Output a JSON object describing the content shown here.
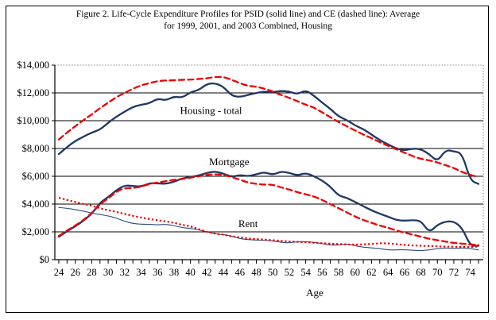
{
  "figure": {
    "title_line1": "Figure 2. Life-Cycle Expenditure Profiles for PSID (solid line) and CE (dashed line): Average",
    "title_line2": "for 1999, 2001, and 2003 Combined, Housing"
  },
  "colors": {
    "psid_solid": "#1F3864",
    "rent_psid_thin": "#2B4B7E",
    "ce_red": "#EE0000",
    "gridline": "#000000",
    "dotted_border": "#888888"
  },
  "chart_data": {
    "type": "line",
    "title": "Figure 2. Life-Cycle Expenditure Profiles for PSID (solid line) and CE (dashed line): Average for 1999, 2001, and 2003 Combined, Housing",
    "xlabel": "Age",
    "ylabel": "",
    "xlim": [
      24,
      75
    ],
    "ylim": [
      0,
      14000
    ],
    "grid": true,
    "legend": "none (labels drawn inside plot)",
    "x_tick_labels": [
      "24",
      "26",
      "28",
      "30",
      "32",
      "34",
      "36",
      "38",
      "40",
      "42",
      "44",
      "46",
      "48",
      "50",
      "52",
      "54",
      "56",
      "58",
      "60",
      "62",
      "64",
      "66",
      "68",
      "70",
      "72",
      "74"
    ],
    "y_ticks": [
      {
        "value": 0,
        "label": "$0"
      },
      {
        "value": 2000,
        "label": "$2,000"
      },
      {
        "value": 4000,
        "label": "$4,000"
      },
      {
        "value": 6000,
        "label": "$6,000"
      },
      {
        "value": 8000,
        "label": "$8,000"
      },
      {
        "value": 10000,
        "label": "$10,000"
      },
      {
        "value": 12000,
        "label": "$12,000"
      },
      {
        "value": 14000,
        "label": "$14,000"
      }
    ],
    "x": [
      24,
      25,
      26,
      27,
      28,
      29,
      30,
      31,
      32,
      33,
      34,
      35,
      36,
      37,
      38,
      39,
      40,
      41,
      42,
      43,
      44,
      45,
      46,
      47,
      48,
      49,
      50,
      51,
      52,
      53,
      54,
      55,
      56,
      57,
      58,
      59,
      60,
      61,
      62,
      63,
      64,
      65,
      66,
      67,
      68,
      69,
      70,
      71,
      72,
      73,
      74,
      75
    ],
    "series": [
      {
        "name": "Housing - total, PSID (solid)",
        "color": "#1F3864",
        "style": "solid",
        "weight": "thick",
        "values": [
          7600,
          8100,
          8550,
          8850,
          9150,
          9350,
          9850,
          10300,
          10650,
          11000,
          11150,
          11250,
          11600,
          11450,
          11750,
          11650,
          12050,
          12200,
          12650,
          12700,
          12450,
          11800,
          11700,
          11850,
          12000,
          12100,
          12050,
          12150,
          12100,
          11900,
          12200,
          11800,
          11300,
          10850,
          10300,
          10050,
          9650,
          9400,
          9000,
          8600,
          8300,
          8000,
          7850,
          8000,
          7950,
          7600,
          7050,
          7900,
          7800,
          7650,
          5700,
          5450
        ]
      },
      {
        "name": "Housing - total, CE (dashed)",
        "color": "#EE0000",
        "style": "dashed",
        "weight": "thick",
        "values": [
          8650,
          9150,
          9600,
          10050,
          10450,
          10900,
          11300,
          11700,
          12000,
          12300,
          12550,
          12700,
          12850,
          12900,
          12900,
          12950,
          12950,
          13000,
          13050,
          13150,
          13150,
          12950,
          12700,
          12500,
          12450,
          12300,
          12100,
          11850,
          11650,
          11400,
          11150,
          10950,
          10600,
          10250,
          9900,
          9600,
          9300,
          9000,
          8750,
          8450,
          8200,
          7950,
          7700,
          7450,
          7250,
          7150,
          7000,
          6800,
          6600,
          6300,
          6100,
          5950
        ]
      },
      {
        "name": "Mortgage, PSID (solid)",
        "color": "#1F3864",
        "style": "solid",
        "weight": "thick",
        "values": [
          1650,
          2050,
          2400,
          2800,
          3300,
          4100,
          4500,
          5000,
          5350,
          5300,
          5250,
          5500,
          5500,
          5450,
          5600,
          5850,
          5950,
          6050,
          6250,
          6350,
          6200,
          5950,
          6100,
          6000,
          6150,
          6300,
          6100,
          6350,
          6250,
          6050,
          6250,
          6000,
          5700,
          5250,
          4600,
          4450,
          4150,
          3850,
          3550,
          3300,
          3100,
          2850,
          2800,
          2850,
          2800,
          1950,
          2500,
          2750,
          2750,
          2300,
          1000,
          1000
        ]
      },
      {
        "name": "Mortgage, CE (dashed)",
        "color": "#EE0000",
        "style": "dashed",
        "weight": "thick",
        "values": [
          1700,
          2100,
          2450,
          2850,
          3350,
          4000,
          4400,
          4900,
          5150,
          5150,
          5250,
          5450,
          5550,
          5650,
          5750,
          5800,
          5900,
          6000,
          6100,
          6150,
          6100,
          5950,
          5750,
          5550,
          5450,
          5400,
          5400,
          5200,
          5050,
          4850,
          4700,
          4550,
          4300,
          4000,
          3700,
          3400,
          3100,
          2850,
          2650,
          2450,
          2300,
          2100,
          1950,
          1800,
          1650,
          1500,
          1400,
          1300,
          1200,
          1150,
          1100,
          1050
        ]
      },
      {
        "name": "Rent, PSID (solid thin)",
        "color": "#2B4B7E",
        "style": "solid",
        "weight": "thin",
        "values": [
          3750,
          3700,
          3600,
          3500,
          3350,
          3250,
          3150,
          3000,
          2750,
          2600,
          2550,
          2550,
          2500,
          2550,
          2450,
          2300,
          2250,
          2150,
          2000,
          1850,
          1800,
          1700,
          1500,
          1450,
          1400,
          1400,
          1350,
          1250,
          1200,
          1300,
          1300,
          1250,
          1150,
          1050,
          1050,
          1150,
          1000,
          900,
          850,
          800,
          700,
          700,
          720,
          680,
          650,
          700,
          800,
          850,
          800,
          850,
          800,
          700
        ]
      },
      {
        "name": "Rent, CE (dotted)",
        "color": "#EE0000",
        "style": "dotted",
        "weight": "thick",
        "values": [
          4450,
          4300,
          4150,
          4000,
          3890,
          3700,
          3550,
          3430,
          3300,
          3150,
          3030,
          2930,
          2830,
          2760,
          2650,
          2500,
          2400,
          2200,
          2000,
          1870,
          1800,
          1680,
          1600,
          1530,
          1480,
          1450,
          1400,
          1350,
          1310,
          1280,
          1250,
          1220,
          1180,
          1150,
          1120,
          1100,
          1080,
          1100,
          1130,
          1180,
          1170,
          1120,
          1060,
          1020,
          1000,
          980,
          960,
          940,
          930,
          920,
          900,
          950
        ]
      }
    ],
    "annotations": [
      {
        "text": "Housing - total",
        "age": 42.5,
        "value": 10500
      },
      {
        "text": "Mortgage",
        "age": 44.7,
        "value": 6800
      },
      {
        "text": "Rent",
        "age": 47,
        "value": 2350
      }
    ]
  }
}
